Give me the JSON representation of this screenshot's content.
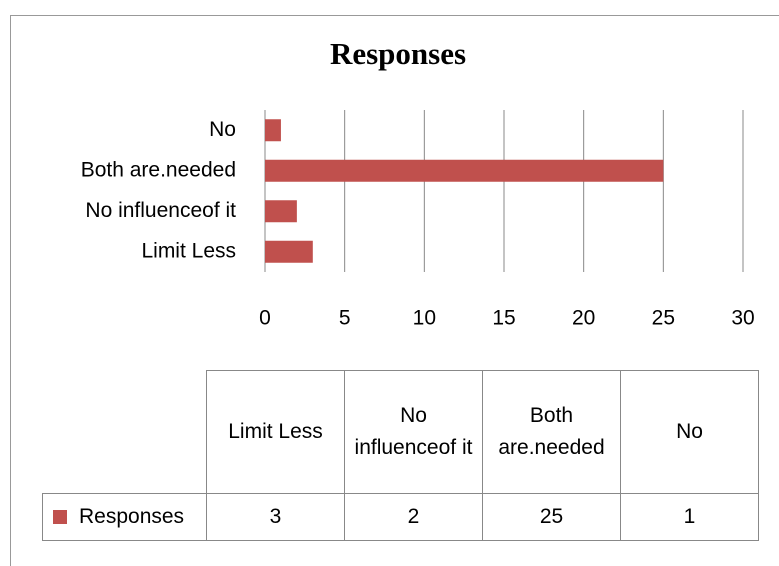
{
  "chart_data": {
    "type": "bar",
    "orientation": "horizontal",
    "title": "Responses",
    "categories": [
      "Limit Less",
      "No influenceof it",
      "Both are.needed",
      "No"
    ],
    "series": [
      {
        "name": "Responses",
        "color": "#c0504d",
        "values": [
          3,
          2,
          25,
          1
        ]
      }
    ],
    "xlim": [
      0,
      30
    ],
    "xticks": [
      0,
      5,
      10,
      15,
      20,
      25,
      30
    ],
    "grid": true,
    "data_table": true
  }
}
